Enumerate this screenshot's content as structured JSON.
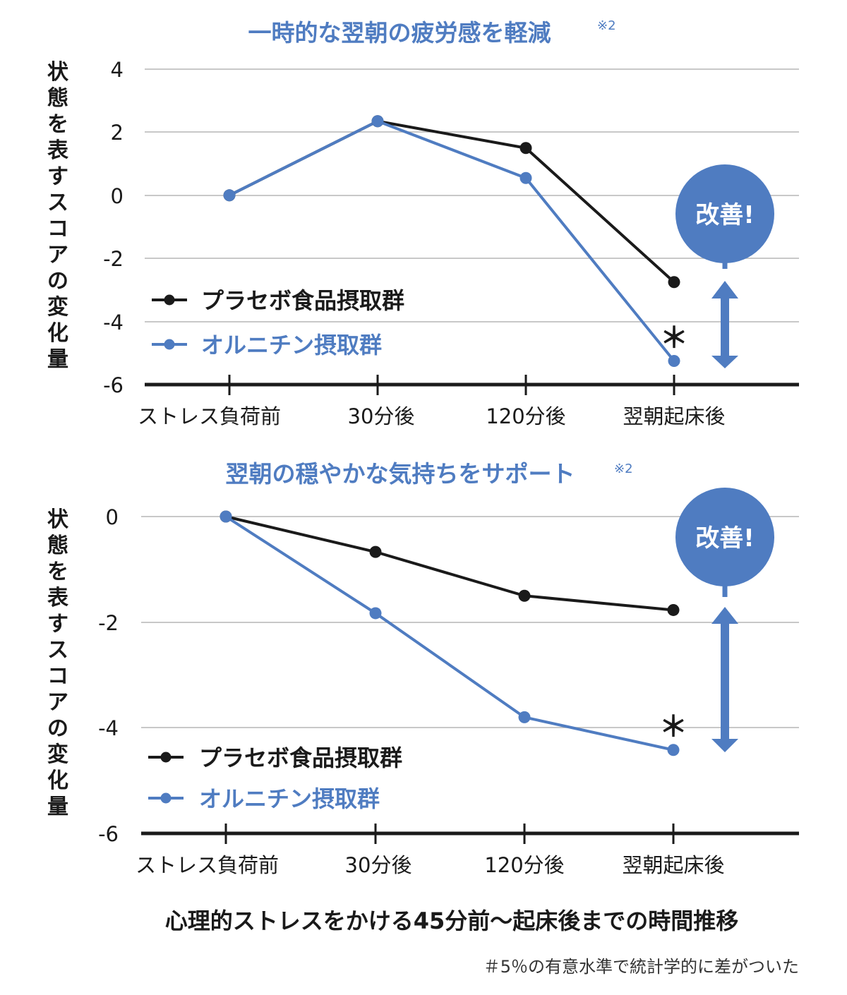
{
  "colors": {
    "placebo": "#1a1a1a",
    "ornithine": "#4f7cc1",
    "grid": "#b5b5b5",
    "axis": "#1a1a1a",
    "title": "#4f7cc1",
    "badge": "#4f7cc1"
  },
  "chart_data": [
    {
      "type": "line",
      "title": "一時的な翌朝の疲労感を軽減",
      "title_note": "※2",
      "ylabel": "状態を表すスコアの変化量",
      "categories": [
        "ストレス負荷前",
        "30分後",
        "120分後",
        "翌朝起床後"
      ],
      "yticks": [
        "4",
        "2",
        "0",
        "-2",
        "-4",
        "-6"
      ],
      "ylim": [
        -6,
        4
      ],
      "grid": true,
      "legend_position": "lower-left",
      "series": [
        {
          "name": "プラセボ食品摂取群",
          "values": [
            0,
            2.35,
            1.5,
            -2.75
          ]
        },
        {
          "name": "オルニチン摂取群",
          "values": [
            0,
            2.35,
            0.55,
            -5.25
          ]
        }
      ],
      "significance_mark": "＊",
      "badge": "改善!"
    },
    {
      "type": "line",
      "title": "翌朝の穏やかな気持ちをサポート",
      "title_note": "※2",
      "ylabel": "状態を表すスコアの変化量",
      "categories": [
        "ストレス負荷前",
        "30分後",
        "120分後",
        "翌朝起床後"
      ],
      "yticks": [
        "0",
        "-2",
        "-4",
        "-6"
      ],
      "ylim": [
        -6,
        0
      ],
      "grid": true,
      "legend_position": "lower-left",
      "series": [
        {
          "name": "プラセボ食品摂取群",
          "values": [
            0,
            -0.67,
            -1.5,
            -1.77
          ]
        },
        {
          "name": "オルニチン摂取群",
          "values": [
            0,
            -1.83,
            -3.8,
            -4.42
          ]
        }
      ],
      "significance_mark": "＊",
      "badge": "改善!"
    }
  ],
  "footer": {
    "xlabel": "心理的ストレスをかける45分前〜起床後までの時間推移",
    "note": "＃5％の有意水準で統計学的に差がついた"
  }
}
